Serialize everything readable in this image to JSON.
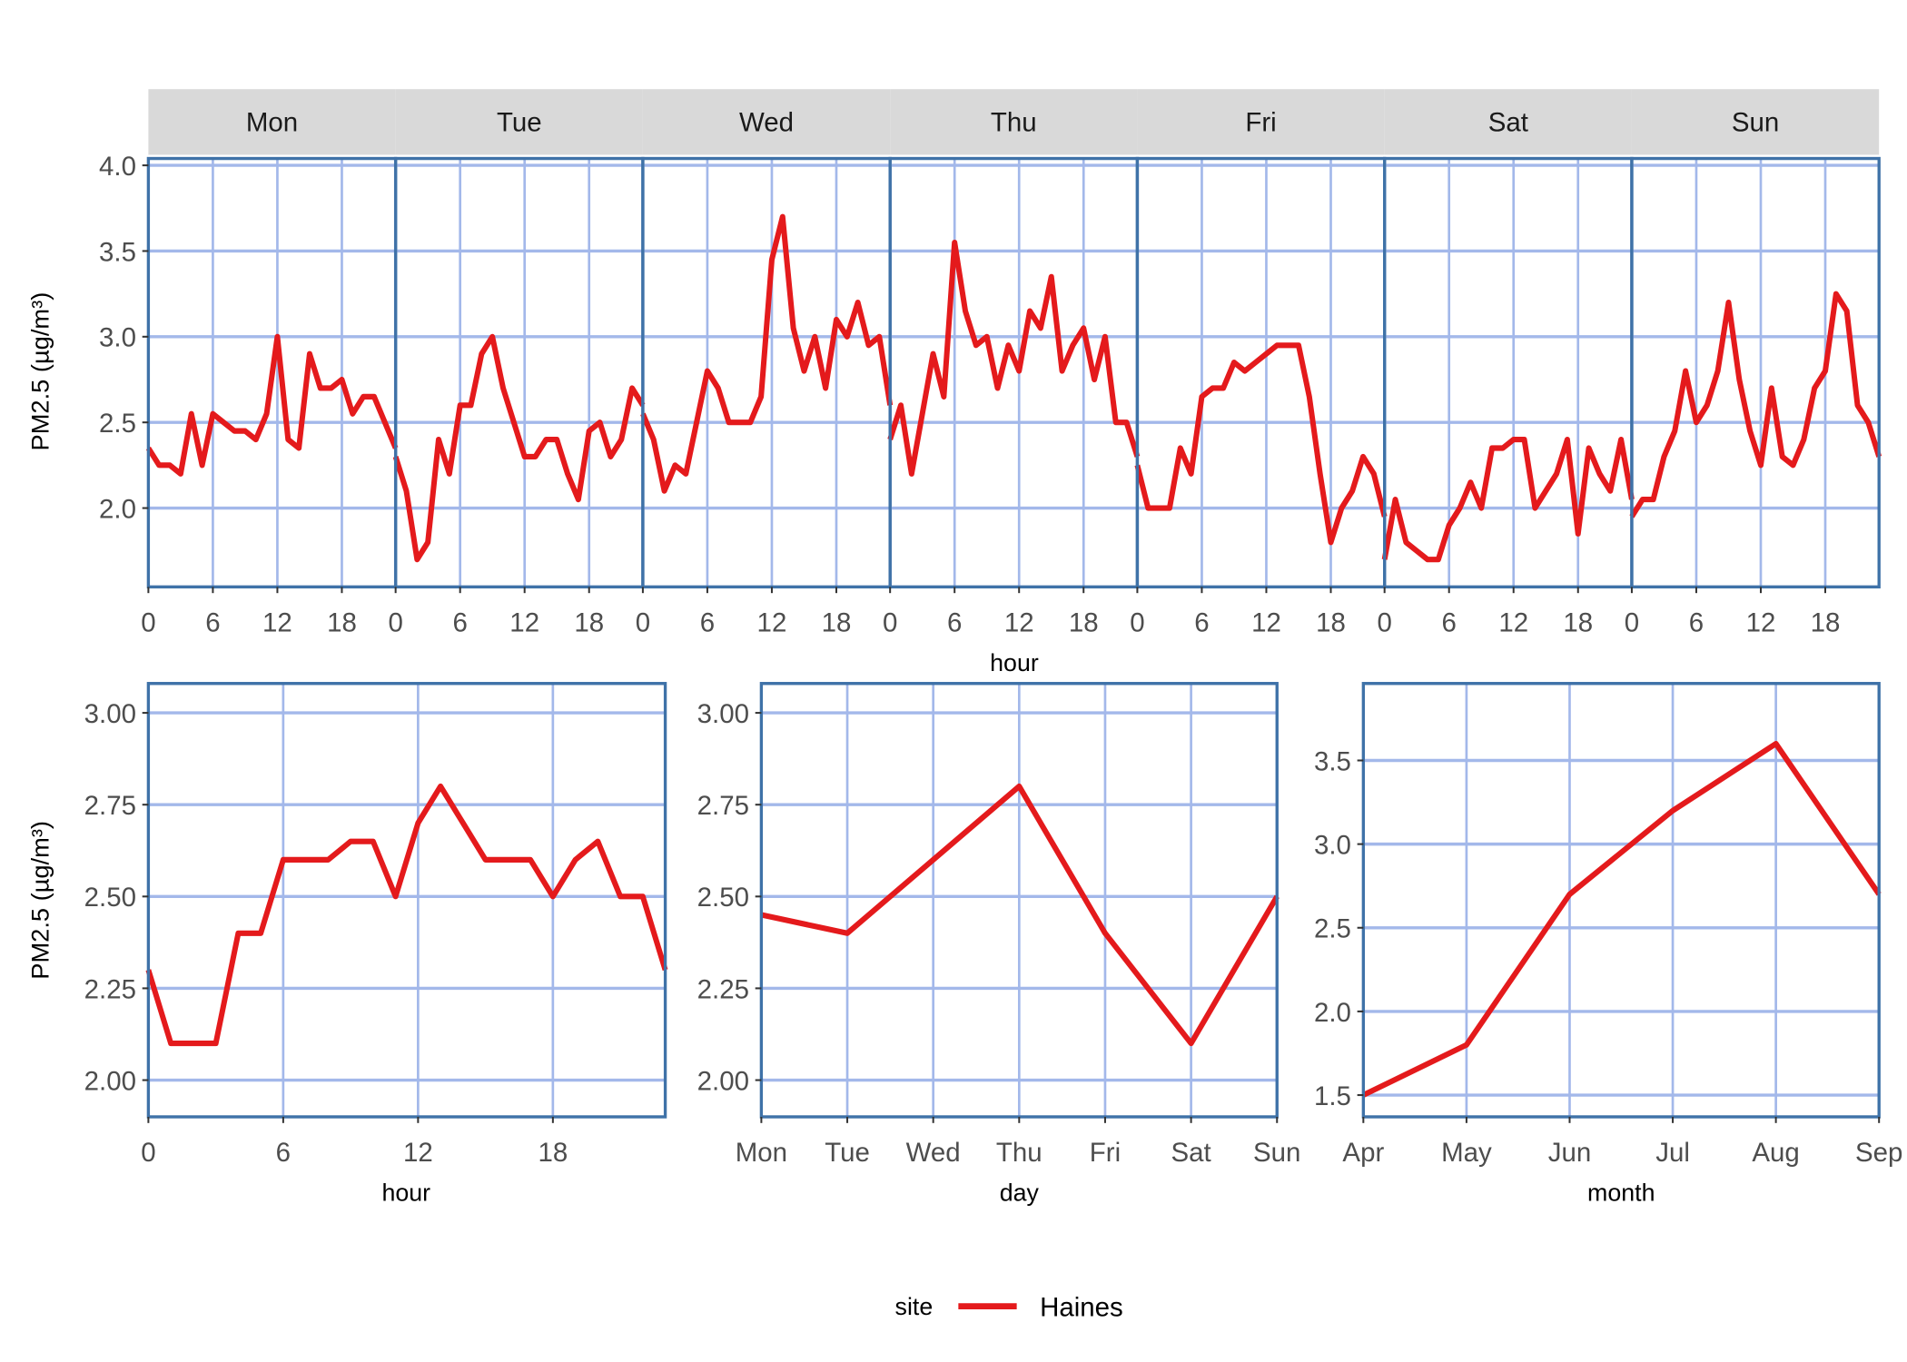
{
  "colors": {
    "line": "#E41A1C",
    "grid": "#A3B8EA",
    "border": "#3F72A8",
    "strip": "#D9D9D9"
  },
  "legend": {
    "title": "site",
    "entries": [
      "Haines"
    ]
  },
  "chart_data": [
    {
      "type": "line",
      "facet_by": "day",
      "facets": [
        "Mon",
        "Tue",
        "Wed",
        "Thu",
        "Fri",
        "Sat",
        "Sun"
      ],
      "xlabel": "hour",
      "ylabel": "PM2.5 (µg/m³)",
      "x_ticks": [
        0,
        6,
        12,
        18
      ],
      "y_ticks": [
        2.0,
        2.5,
        3.0,
        3.5,
        4.0
      ],
      "y_tick_labels": [
        "2.0",
        "2.5",
        "3.0",
        "3.5",
        "4.0"
      ],
      "ylim": [
        1.54,
        4.04
      ],
      "xlim": [
        0,
        23
      ],
      "grid": true,
      "series": [
        {
          "name": "Haines",
          "values": {
            "Mon": [
              2.35,
              2.25,
              2.25,
              2.2,
              2.55,
              2.25,
              2.55,
              2.5,
              2.45,
              2.45,
              2.4,
              2.55,
              3.0,
              2.4,
              2.35,
              2.9,
              2.7,
              2.7,
              2.75,
              2.55,
              2.65,
              2.65,
              2.5,
              2.35
            ],
            "Tue": [
              2.3,
              2.1,
              1.7,
              1.8,
              2.4,
              2.2,
              2.6,
              2.6,
              2.9,
              3.0,
              2.7,
              2.5,
              2.3,
              2.3,
              2.4,
              2.4,
              2.2,
              2.05,
              2.45,
              2.5,
              2.3,
              2.4,
              2.7,
              2.6
            ],
            "Wed": [
              2.55,
              2.4,
              2.1,
              2.25,
              2.2,
              2.5,
              2.8,
              2.7,
              2.5,
              2.5,
              2.5,
              2.65,
              3.45,
              3.7,
              3.05,
              2.8,
              3.0,
              2.7,
              3.1,
              3.0,
              3.2,
              2.95,
              3.0,
              2.6
            ],
            "Thu": [
              2.4,
              2.6,
              2.2,
              2.55,
              2.9,
              2.65,
              3.55,
              3.15,
              2.95,
              3.0,
              2.7,
              2.95,
              2.8,
              3.15,
              3.05,
              3.35,
              2.8,
              2.95,
              3.05,
              2.75,
              3.0,
              2.5,
              2.5,
              2.3
            ],
            "Fri": [
              2.25,
              2.0,
              2.0,
              2.0,
              2.35,
              2.2,
              2.65,
              2.7,
              2.7,
              2.85,
              2.8,
              2.85,
              2.9,
              2.95,
              2.95,
              2.95,
              2.65,
              2.2,
              1.8,
              2.0,
              2.1,
              2.3,
              2.2,
              1.95
            ],
            "Sat": [
              1.7,
              2.05,
              1.8,
              1.75,
              1.7,
              1.7,
              1.9,
              2.0,
              2.15,
              2.0,
              2.35,
              2.35,
              2.4,
              2.4,
              2.0,
              2.1,
              2.2,
              2.4,
              1.85,
              2.35,
              2.2,
              2.1,
              2.4,
              2.05
            ],
            "Sun": [
              1.95,
              2.05,
              2.05,
              2.3,
              2.45,
              2.8,
              2.5,
              2.6,
              2.8,
              3.2,
              2.75,
              2.45,
              2.25,
              2.7,
              2.3,
              2.25,
              2.4,
              2.7,
              2.8,
              3.25,
              3.15,
              2.6,
              2.5,
              2.3
            ]
          }
        }
      ]
    },
    {
      "type": "line",
      "xlabel": "hour",
      "ylabel": "PM2.5 (µg/m³)",
      "x": [
        0,
        1,
        2,
        3,
        4,
        5,
        6,
        7,
        8,
        9,
        10,
        11,
        12,
        13,
        14,
        15,
        16,
        17,
        18,
        19,
        20,
        21,
        22,
        23
      ],
      "x_ticks": [
        0,
        6,
        12,
        18
      ],
      "y_ticks": [
        2.0,
        2.25,
        2.5,
        2.75,
        3.0
      ],
      "y_tick_labels": [
        "2.00",
        "2.25",
        "2.50",
        "2.75",
        "3.00"
      ],
      "ylim": [
        1.9,
        3.08
      ],
      "xlim": [
        0,
        23
      ],
      "grid": true,
      "series": [
        {
          "name": "Haines",
          "values": [
            2.3,
            2.1,
            2.1,
            2.1,
            2.4,
            2.4,
            2.6,
            2.6,
            2.6,
            2.65,
            2.65,
            2.5,
            2.7,
            2.8,
            2.7,
            2.6,
            2.6,
            2.6,
            2.5,
            2.6,
            2.65,
            2.5,
            2.5,
            2.3
          ]
        }
      ]
    },
    {
      "type": "line",
      "xlabel": "day",
      "ylabel": "",
      "categories": [
        "Mon",
        "Tue",
        "Wed",
        "Thu",
        "Fri",
        "Sat",
        "Sun"
      ],
      "y_ticks": [
        2.0,
        2.25,
        2.5,
        2.75,
        3.0
      ],
      "y_tick_labels": [
        "2.00",
        "2.25",
        "2.50",
        "2.75",
        "3.00"
      ],
      "ylim": [
        1.9,
        3.08
      ],
      "grid": true,
      "series": [
        {
          "name": "Haines",
          "values": [
            2.45,
            2.4,
            2.6,
            2.8,
            2.4,
            2.1,
            2.5
          ]
        }
      ]
    },
    {
      "type": "line",
      "xlabel": "month",
      "ylabel": "",
      "categories": [
        "Apr",
        "May",
        "Jun",
        "Jul",
        "Aug",
        "Sep"
      ],
      "y_ticks": [
        1.5,
        2.0,
        2.5,
        3.0,
        3.5
      ],
      "y_tick_labels": [
        "1.5",
        "2.0",
        "2.5",
        "3.0",
        "3.5"
      ],
      "ylim": [
        1.37,
        3.96
      ],
      "grid": true,
      "series": [
        {
          "name": "Haines",
          "values": [
            1.5,
            1.8,
            2.7,
            3.2,
            3.6,
            2.7
          ]
        }
      ]
    }
  ]
}
